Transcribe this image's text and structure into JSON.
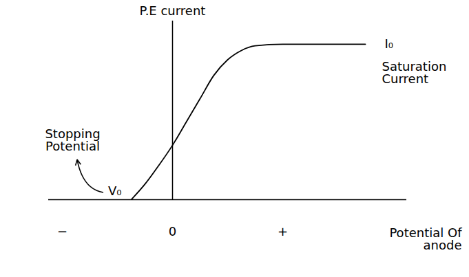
{
  "chart_data": {
    "type": "line",
    "x_label": "Potential Of anode",
    "y_label": "P.E current",
    "x": [
      -1.5,
      -1,
      -0.5,
      0,
      0.5,
      1,
      1.5,
      2,
      2.5,
      3,
      4,
      5,
      6,
      7
    ],
    "values": [
      0,
      0.1,
      0.22,
      0.35,
      0.5,
      0.65,
      0.8,
      0.9,
      0.96,
      0.99,
      1,
      1,
      1,
      1
    ],
    "color": "#000000",
    "xlim": [
      -4.5,
      8.5
    ],
    "ylim": [
      0,
      1.15
    ],
    "xticks": [
      {
        "value": -4,
        "label": "−"
      },
      0,
      {
        "value": 4,
        "label": "+"
      }
    ],
    "yticks": [],
    "tick_labels": "x",
    "grid": false,
    "stopping_potential": {
      "value": -1.5,
      "label": "V₀",
      "annotation": "Stopping Potential"
    },
    "saturation_current": {
      "value": 1,
      "label": "I₀",
      "annotation": "Saturation Current"
    }
  }
}
